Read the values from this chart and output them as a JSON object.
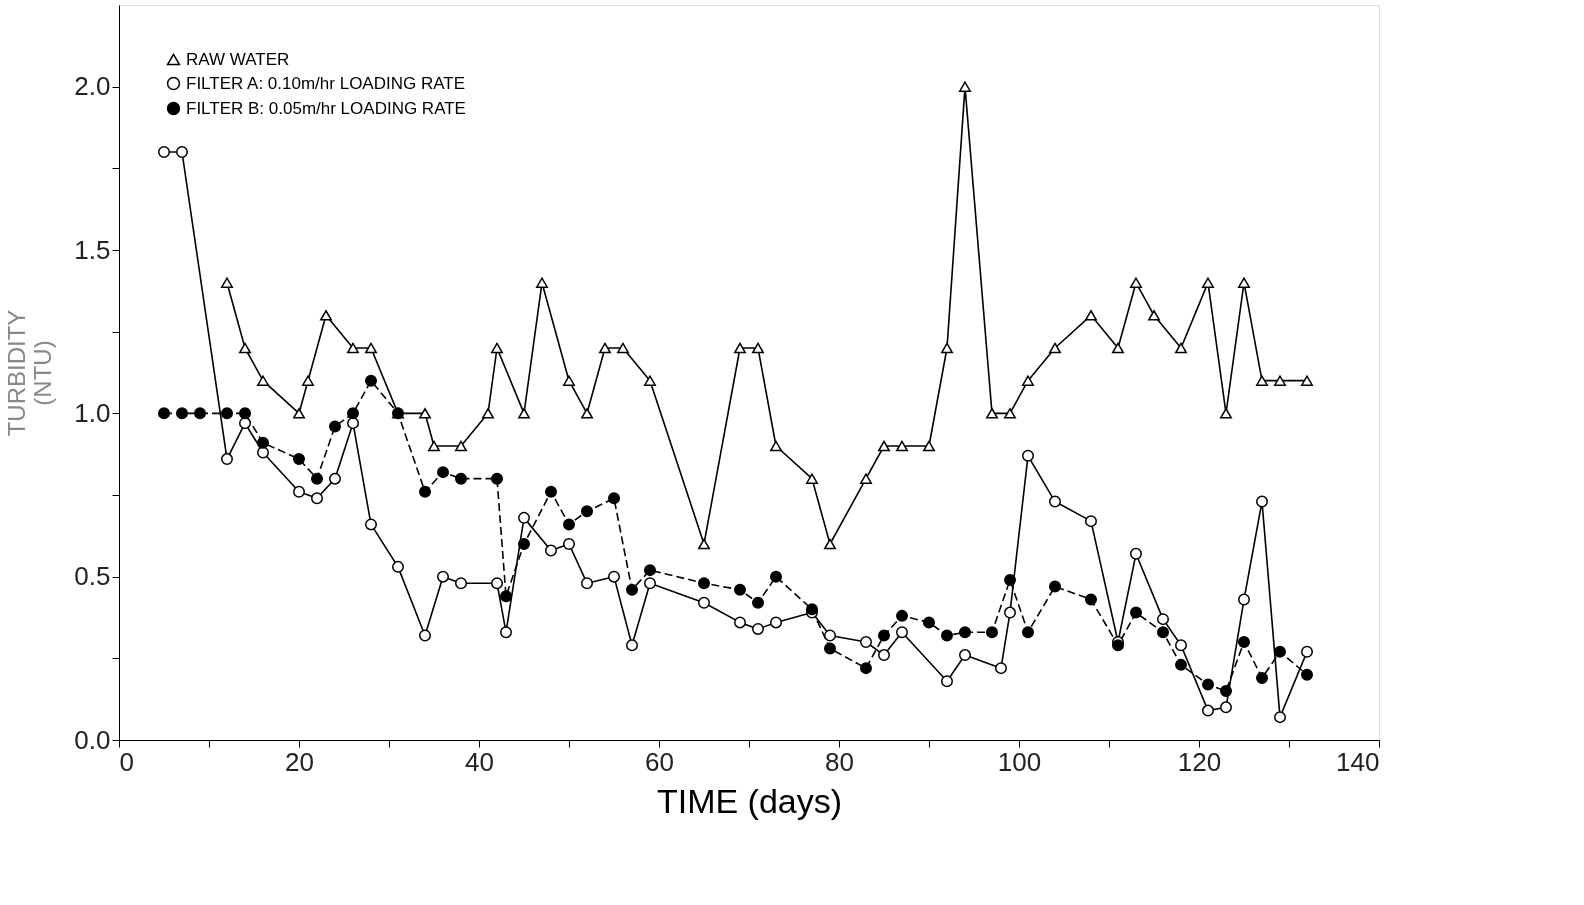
{
  "chart_data": {
    "type": "line",
    "xlabel": "TIME (days)",
    "ylabel": "TURBIDITY (NTU)",
    "xlim": [
      0,
      140
    ],
    "ylim": [
      0,
      2.25
    ],
    "xticks": [
      0,
      {
        "value": 10,
        "label": null
      },
      20,
      {
        "value": 30,
        "label": null
      },
      40,
      {
        "value": 50,
        "label": null
      },
      60,
      {
        "value": 70,
        "label": null
      },
      80,
      {
        "value": 90,
        "label": null
      },
      100,
      {
        "value": 110,
        "label": null
      },
      120,
      {
        "value": 130,
        "label": null
      },
      140
    ],
    "yticks": [
      {
        "value": 0,
        "label": "0.0"
      },
      {
        "value": 0.25,
        "label": null
      },
      {
        "value": 0.5,
        "label": "0.5"
      },
      {
        "value": 0.75,
        "label": null
      },
      {
        "value": 1.0,
        "label": "1.0"
      },
      {
        "value": 1.25,
        "label": null
      },
      {
        "value": 1.5,
        "label": "1.5"
      },
      {
        "value": 1.75,
        "label": null
      },
      {
        "value": 2.0,
        "label": "2.0"
      }
    ],
    "grid": false,
    "legend": "top left",
    "series": [
      {
        "name": "RAW WATER",
        "color": "#ffffff",
        "marker": "triangle",
        "line_style": "solid",
        "x": [
          12,
          14,
          16,
          20,
          21,
          23,
          26,
          28,
          31,
          34,
          35,
          38,
          41,
          42,
          45,
          47,
          50,
          52,
          54,
          56,
          59,
          65,
          69,
          71,
          73,
          77,
          79,
          83,
          85,
          87,
          90,
          92,
          94,
          97,
          99,
          101,
          104,
          108,
          111,
          113,
          115,
          118,
          121,
          123,
          125,
          127,
          129,
          132
        ],
        "values": [
          1.4,
          1.2,
          1.1,
          1.0,
          1.1,
          1.3,
          1.2,
          1.2,
          1.0,
          1.0,
          0.9,
          0.9,
          1.0,
          1.2,
          1.0,
          1.4,
          1.1,
          1.0,
          1.2,
          1.2,
          1.1,
          0.6,
          1.2,
          1.2,
          0.9,
          0.8,
          0.6,
          0.8,
          0.9,
          0.9,
          0.9,
          1.2,
          2.0,
          1.0,
          1.0,
          1.1,
          1.2,
          1.3,
          1.2,
          1.4,
          1.3,
          1.2,
          1.4,
          1.0,
          1.4,
          1.1,
          1.1,
          1.1
        ]
      },
      {
        "name": "FILTER A: 0.10m/hr LOADING RATE",
        "color": "#ffffff",
        "marker": "circle",
        "line_style": "solid",
        "x": [
          5,
          7,
          12,
          14,
          16,
          20,
          22,
          24,
          26,
          28,
          31,
          34,
          36,
          38,
          42,
          43,
          45,
          48,
          50,
          52,
          55,
          57,
          59,
          65,
          69,
          71,
          73,
          77,
          79,
          83,
          85,
          87,
          92,
          94,
          98,
          99,
          101,
          104,
          108,
          111,
          113,
          116,
          118,
          121,
          123,
          125,
          127,
          129,
          132
        ],
        "values": [
          1.8,
          1.8,
          0.86,
          0.97,
          0.88,
          0.76,
          0.74,
          0.8,
          0.97,
          0.66,
          0.53,
          0.32,
          0.5,
          0.48,
          0.48,
          0.33,
          0.68,
          0.58,
          0.6,
          0.48,
          0.5,
          0.29,
          0.48,
          0.42,
          0.36,
          0.34,
          0.36,
          0.39,
          0.32,
          0.3,
          0.26,
          0.33,
          0.18,
          0.26,
          0.22,
          0.39,
          0.87,
          0.73,
          0.67,
          0.3,
          0.57,
          0.37,
          0.29,
          0.09,
          0.1,
          0.43,
          0.73,
          0.07,
          0.27
        ]
      },
      {
        "name": "FILTER B: 0.05m/hr LOADING RATE",
        "color": "#000000",
        "marker": "circle",
        "line_style": "dashed",
        "x": [
          5,
          7,
          9,
          12,
          14,
          16,
          20,
          22,
          24,
          26,
          28,
          31,
          34,
          36,
          38,
          42,
          43,
          45,
          48,
          50,
          52,
          55,
          57,
          59,
          65,
          69,
          71,
          73,
          77,
          79,
          83,
          85,
          87,
          90,
          92,
          94,
          97,
          99,
          101,
          104,
          108,
          111,
          113,
          116,
          118,
          121,
          123,
          125,
          127,
          129,
          132
        ],
        "values": [
          1.0,
          1.0,
          1.0,
          1.0,
          1.0,
          0.91,
          0.86,
          0.8,
          0.96,
          1.0,
          1.1,
          1.0,
          0.76,
          0.82,
          0.8,
          0.8,
          0.44,
          0.6,
          0.76,
          0.66,
          0.7,
          0.74,
          0.46,
          0.52,
          0.48,
          0.46,
          0.42,
          0.5,
          0.4,
          0.28,
          0.22,
          0.32,
          0.38,
          0.36,
          0.32,
          0.33,
          0.33,
          0.49,
          0.33,
          0.47,
          0.43,
          0.29,
          0.39,
          0.33,
          0.23,
          0.17,
          0.15,
          0.3,
          0.19,
          0.27,
          0.2
        ]
      }
    ]
  }
}
